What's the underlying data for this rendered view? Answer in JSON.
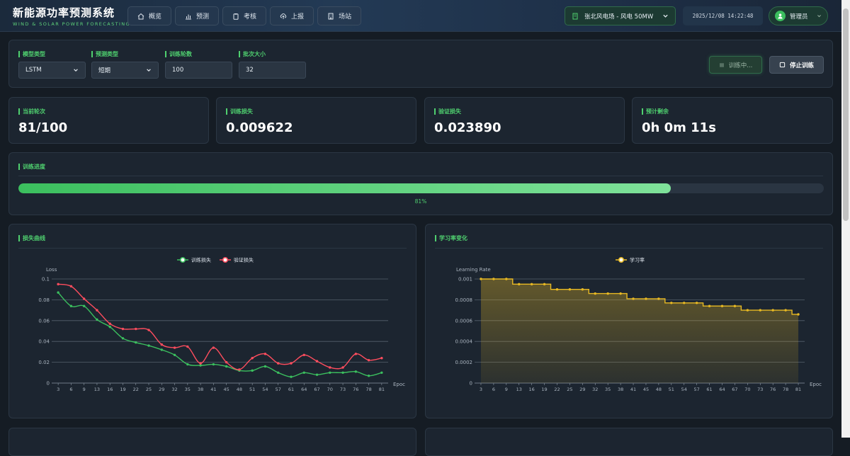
{
  "header": {
    "title": "新能源功率预测系统",
    "subtitle": "WIND & SOLAR POWER FORECASTING",
    "nav": [
      {
        "label": "概览",
        "icon": "home-icon"
      },
      {
        "label": "预测",
        "icon": "chart-icon"
      },
      {
        "label": "考核",
        "icon": "clipboard-icon"
      },
      {
        "label": "上报",
        "icon": "upload-icon"
      },
      {
        "label": "场站",
        "icon": "building-icon"
      }
    ],
    "station": "张北风电场 - 风电 50MW",
    "datetime": "2025/12/08 14:22:48",
    "user": "管理员"
  },
  "config": {
    "model_type_label": "模型类型",
    "model_type_value": "LSTM",
    "pred_type_label": "预测类型",
    "pred_type_value": "短期",
    "epochs_label": "训练轮数",
    "epochs_value": "100",
    "batch_label": "批次大小",
    "batch_value": "32",
    "training_btn": "训练中...",
    "stop_btn": "停止训练"
  },
  "stats": [
    {
      "label": "当前轮次",
      "value": "81/100"
    },
    {
      "label": "训练损失",
      "value": "0.009622"
    },
    {
      "label": "验证损失",
      "value": "0.023890"
    },
    {
      "label": "预计剩余",
      "value": "0h 0m 11s"
    }
  ],
  "progress": {
    "label": "训练进度",
    "percent": 81,
    "text": "81%"
  },
  "colors": {
    "accent": "#4fd06f",
    "train": "#3bbf5e",
    "val": "#ff4d5e",
    "lr": "#e8b923"
  },
  "chart_data": [
    {
      "type": "line",
      "title": "损失曲线",
      "ylabel": "Loss",
      "xlabel": "Epoc",
      "ylim": [
        0,
        0.1
      ],
      "yticks": [
        "0",
        "0.02",
        "0.04",
        "0.06",
        "0.08",
        "0.1"
      ],
      "legend_position": "top",
      "x": [
        3,
        6,
        9,
        13,
        16,
        19,
        22,
        25,
        29,
        32,
        35,
        38,
        41,
        45,
        48,
        51,
        54,
        57,
        61,
        64,
        67,
        70,
        73,
        76,
        78,
        81
      ],
      "series": [
        {
          "name": "训练损失",
          "values": [
            0.087,
            0.074,
            0.074,
            0.061,
            0.054,
            0.043,
            0.039,
            0.036,
            0.032,
            0.027,
            0.018,
            0.017,
            0.018,
            0.016,
            0.012,
            0.012,
            0.016,
            0.01,
            0.006,
            0.01,
            0.008,
            0.01,
            0.01,
            0.011,
            0.007,
            0.01
          ]
        },
        {
          "name": "验证损失",
          "values": [
            0.095,
            0.093,
            0.081,
            0.07,
            0.057,
            0.052,
            0.052,
            0.051,
            0.037,
            0.034,
            0.035,
            0.019,
            0.034,
            0.02,
            0.013,
            0.024,
            0.028,
            0.019,
            0.019,
            0.027,
            0.021,
            0.015,
            0.015,
            0.028,
            0.022,
            0.024
          ]
        }
      ]
    },
    {
      "type": "area",
      "title": "学习率变化",
      "ylabel": "Learning Rate",
      "xlabel": "Epoc",
      "ylim": [
        0,
        0.001
      ],
      "yticks": [
        "0",
        "0.0002",
        "0.0004",
        "0.0006",
        "0.0008",
        "0.001"
      ],
      "legend_position": "top",
      "x": [
        3,
        6,
        9,
        13,
        16,
        19,
        22,
        25,
        29,
        32,
        35,
        38,
        41,
        45,
        48,
        51,
        54,
        57,
        61,
        64,
        67,
        70,
        73,
        76,
        78,
        81
      ],
      "series": [
        {
          "name": "学习率",
          "values": [
            0.001,
            0.001,
            0.001,
            0.00095,
            0.00095,
            0.00095,
            0.0009,
            0.0009,
            0.0009,
            0.00086,
            0.00086,
            0.00086,
            0.00081,
            0.00081,
            0.00081,
            0.00077,
            0.00077,
            0.00077,
            0.00074,
            0.00074,
            0.00074,
            0.0007,
            0.0007,
            0.0007,
            0.0007,
            0.00066
          ]
        }
      ]
    }
  ]
}
